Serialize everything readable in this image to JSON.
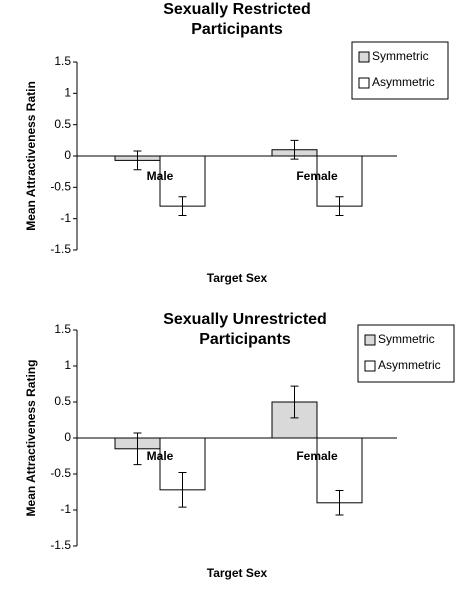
{
  "chart_data": [
    {
      "type": "bar",
      "title": [
        "Sexually Restricted",
        "Participants"
      ],
      "x_label": "Target Sex",
      "y_label": "Mean Attractiveness Ratin",
      "categories": [
        "Male",
        "Female"
      ],
      "series": [
        {
          "name": "Symmetric",
          "color": "#d9d9d9",
          "values": [
            -0.07,
            0.1
          ],
          "errors": [
            0.15,
            0.15
          ]
        },
        {
          "name": "Asymmetric",
          "color": "#ffffff",
          "values": [
            -0.8,
            -0.8
          ],
          "errors": [
            0.15,
            0.15
          ]
        }
      ],
      "ylim": [
        -1.5,
        1.5
      ],
      "yticks": [
        -1.5,
        -1,
        -0.5,
        0,
        0.5,
        1,
        1.5
      ],
      "legend": "top-right"
    },
    {
      "type": "bar",
      "title": [
        "Sexually Unrestricted",
        "Participants"
      ],
      "x_label": "Target Sex",
      "y_label": "Mean Attractiveness Rating",
      "categories": [
        "Male",
        "Female"
      ],
      "series": [
        {
          "name": "Symmetric",
          "color": "#d9d9d9",
          "values": [
            -0.15,
            0.5
          ],
          "errors": [
            0.22,
            0.22
          ]
        },
        {
          "name": "Asymmetric",
          "color": "#ffffff",
          "values": [
            -0.72,
            -0.9
          ],
          "errors": [
            0.24,
            0.17
          ]
        }
      ],
      "ylim": [
        -1.5,
        1.5
      ],
      "yticks": [
        -1.5,
        -1,
        -0.5,
        0,
        0.5,
        1,
        1.5
      ],
      "legend": "top-right"
    }
  ]
}
